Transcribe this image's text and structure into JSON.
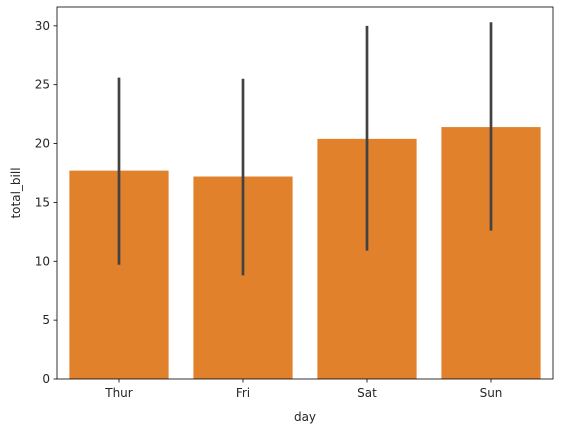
{
  "chart_data": {
    "type": "bar",
    "categories": [
      "Thur",
      "Fri",
      "Sat",
      "Sun"
    ],
    "values": [
      17.7,
      17.2,
      20.4,
      21.4
    ],
    "error_bars": [
      {
        "low": 9.7,
        "high": 25.6
      },
      {
        "low": 8.8,
        "high": 25.5
      },
      {
        "low": 10.9,
        "high": 30.0
      },
      {
        "low": 12.6,
        "high": 30.3
      }
    ],
    "title": "",
    "xlabel": "day",
    "ylabel": "total_bill",
    "ylim": [
      0,
      31.6
    ],
    "yticks": [
      0,
      5,
      10,
      15,
      20,
      25,
      30
    ],
    "grid": false,
    "bar_color": "#E1812C",
    "error_color": "#424242"
  }
}
